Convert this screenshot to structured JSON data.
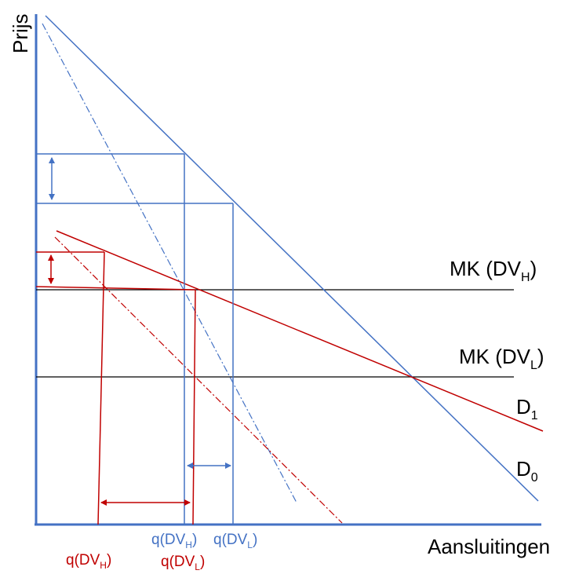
{
  "axes": {
    "y_label": "Prijs",
    "x_label": "Aansluitingen"
  },
  "curves": {
    "mc_high": {
      "main": "MK (DV",
      "sub": "H",
      "close": ")"
    },
    "mc_low": {
      "main": "MK (DV",
      "sub": "L",
      "close": ")"
    },
    "d1": {
      "main": "D",
      "sub": "1"
    },
    "d0": {
      "main": "D",
      "sub": "0"
    }
  },
  "quantity_labels": {
    "blue_high": {
      "main": "q(DV",
      "sub": "H",
      "close": ")"
    },
    "blue_low": {
      "main": "q(DV",
      "sub": "L",
      "close": ")"
    },
    "red_high": {
      "main": "q(DV",
      "sub": "H",
      "close": ")"
    },
    "red_low": {
      "main": "q(DV",
      "sub": "L",
      "close": ")"
    }
  },
  "colors": {
    "axis": "#4472C4",
    "blue": "#4472C4",
    "red": "#C00000",
    "black": "#000000"
  }
}
